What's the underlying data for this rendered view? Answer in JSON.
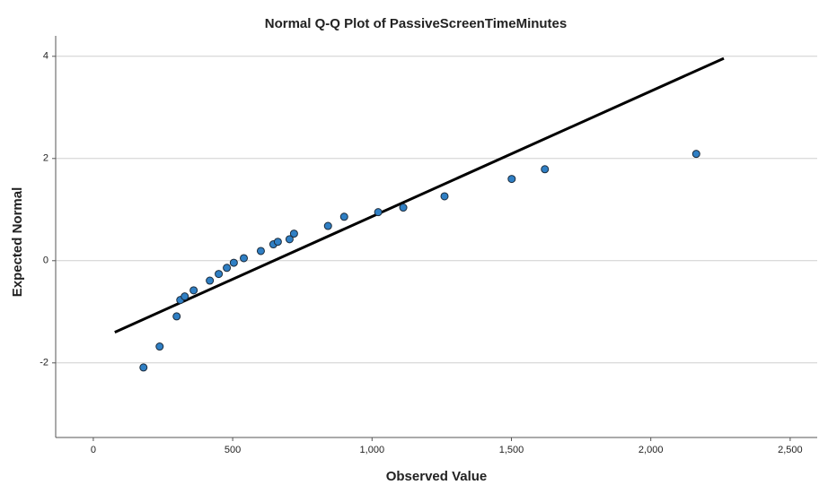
{
  "chart_data": {
    "type": "scatter",
    "title": "Normal Q-Q Plot of PassiveScreenTimeMinutes",
    "x_label": "Observed Value",
    "y_label": "Expected Normal",
    "x": [
      180,
      238,
      299,
      312,
      328,
      360,
      418,
      450,
      479,
      504,
      540,
      601,
      646,
      662,
      704,
      720,
      842,
      900,
      1022,
      1112,
      1260,
      1501,
      1620,
      2163
    ],
    "values": [
      -2.09,
      -1.68,
      -1.09,
      -0.77,
      -0.7,
      -0.58,
      -0.39,
      -0.26,
      -0.14,
      -0.04,
      0.05,
      0.19,
      0.32,
      0.37,
      0.42,
      0.53,
      0.68,
      0.86,
      0.95,
      1.04,
      1.26,
      1.6,
      1.79,
      2.09
    ],
    "color": "#2f7fc4",
    "reference_line": {
      "x": [
        77,
        2262
      ],
      "y": [
        -1.4,
        3.96
      ],
      "color": "#000000"
    },
    "xlim": [
      -135,
      2597
    ],
    "ylim": [
      -3.46,
      4.4
    ],
    "xticks": [
      0,
      500,
      {
        "value": 1000,
        "label": "1,000"
      },
      {
        "value": 1500,
        "label": "1,500"
      },
      {
        "value": 2000,
        "label": "2,000"
      },
      {
        "value": 2500,
        "label": "2,500"
      }
    ],
    "yticks": [
      -2,
      0,
      2,
      4
    ],
    "grid": true
  }
}
